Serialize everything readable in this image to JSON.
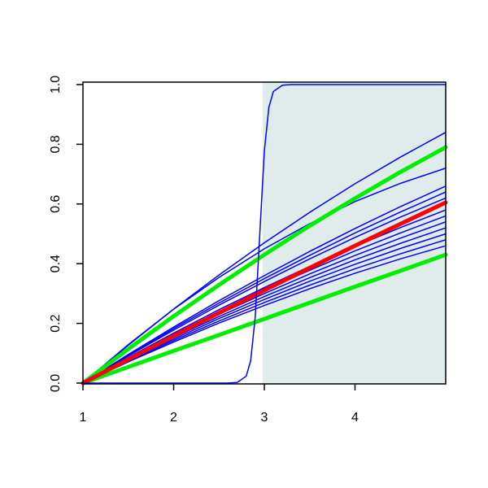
{
  "chart_data": {
    "type": "line",
    "x": [
      1,
      1.5,
      2,
      2.5,
      3,
      3.5,
      4,
      4.5,
      5
    ],
    "xlim": [
      1,
      5
    ],
    "ylim": [
      0,
      1
    ],
    "xticks": [
      1,
      2,
      3,
      4
    ],
    "yticks": [
      {
        "value": 0,
        "label": "0.0"
      },
      {
        "value": 0.2,
        "label": "0.2"
      },
      {
        "value": 0.4,
        "label": "0.4"
      },
      {
        "value": 0.6,
        "label": "0.6"
      },
      {
        "value": 0.8,
        "label": "0.8"
      },
      {
        "value": 1,
        "label": "1.0"
      }
    ],
    "shaded_region": {
      "xlim": [
        2.98,
        5
      ],
      "color": "#e0ecec"
    },
    "series": [
      {
        "color": "blue",
        "values": [
          0,
          0.127,
          0.248,
          0.362,
          0.47,
          0.572,
          0.668,
          0.757,
          0.84
        ]
      },
      {
        "color": "blue",
        "values": [
          0,
          0.129,
          0.2475,
          0.354,
          0.45,
          0.534,
          0.608,
          0.669,
          0.72
        ]
      },
      {
        "color": "blue",
        "values": [
          0,
          0.096,
          0.1875,
          0.276,
          0.36,
          0.441,
          0.518,
          0.591,
          0.66
        ]
      },
      {
        "color": "blue",
        "values": [
          0,
          0.093,
          0.1825,
          0.268,
          0.35,
          0.428,
          0.503,
          0.573,
          0.64
        ]
      },
      {
        "color": "blue",
        "values": [
          0,
          0.091,
          0.1775,
          0.261,
          0.34,
          0.416,
          0.488,
          0.556,
          0.62
        ]
      },
      {
        "color": "blue",
        "values": [
          0,
          0.086,
          0.1675,
          0.246,
          0.32,
          0.391,
          0.458,
          0.521,
          0.58
        ]
      },
      {
        "color": "blue",
        "values": [
          0,
          0.083,
          0.1625,
          0.238,
          0.31,
          0.378,
          0.443,
          0.503,
          0.56
        ]
      },
      {
        "color": "blue",
        "values": [
          0,
          0.0806,
          0.1575,
          0.2306,
          0.3,
          0.3656,
          0.4275,
          0.4856,
          0.54
        ]
      },
      {
        "color": "blue",
        "values": [
          0,
          0.078,
          0.1525,
          0.223,
          0.29,
          0.353,
          0.413,
          0.468,
          0.52
        ]
      },
      {
        "color": "blue",
        "values": [
          0,
          0.076,
          0.1475,
          0.216,
          0.28,
          0.341,
          0.398,
          0.451,
          0.5
        ]
      },
      {
        "color": "blue",
        "values": [
          0,
          0.073,
          0.1425,
          0.208,
          0.27,
          0.328,
          0.383,
          0.433,
          0.48
        ]
      },
      {
        "color": "blue",
        "values": [
          0,
          0.071,
          0.1375,
          0.201,
          0.26,
          0.316,
          0.368,
          0.416,
          0.46
        ]
      },
      {
        "color": "#00ee00",
        "values": [
          0,
          0.114,
          0.224,
          0.329,
          0.43,
          0.527,
          0.619,
          0.707,
          0.79
        ]
      },
      {
        "color": "#00ee00",
        "values": [
          0,
          0.054,
          0.108,
          0.161,
          0.215,
          0.269,
          0.323,
          0.376,
          0.43
        ]
      },
      {
        "color": "red",
        "values": [
          0,
          0.0795,
          0.158,
          0.235,
          0.311,
          0.386,
          0.46,
          0.533,
          0.605
        ]
      },
      {
        "color": "blue",
        "x": [
          1,
          2.5,
          2.6,
          2.7,
          2.8,
          2.85,
          2.9,
          2.95,
          3.0,
          3.05,
          3.1,
          3.2,
          3.3,
          5
        ],
        "values": [
          0,
          0,
          0.0002,
          0.002,
          0.023,
          0.076,
          0.223,
          0.5,
          0.777,
          0.924,
          0.977,
          0.998,
          1,
          1
        ]
      }
    ]
  }
}
